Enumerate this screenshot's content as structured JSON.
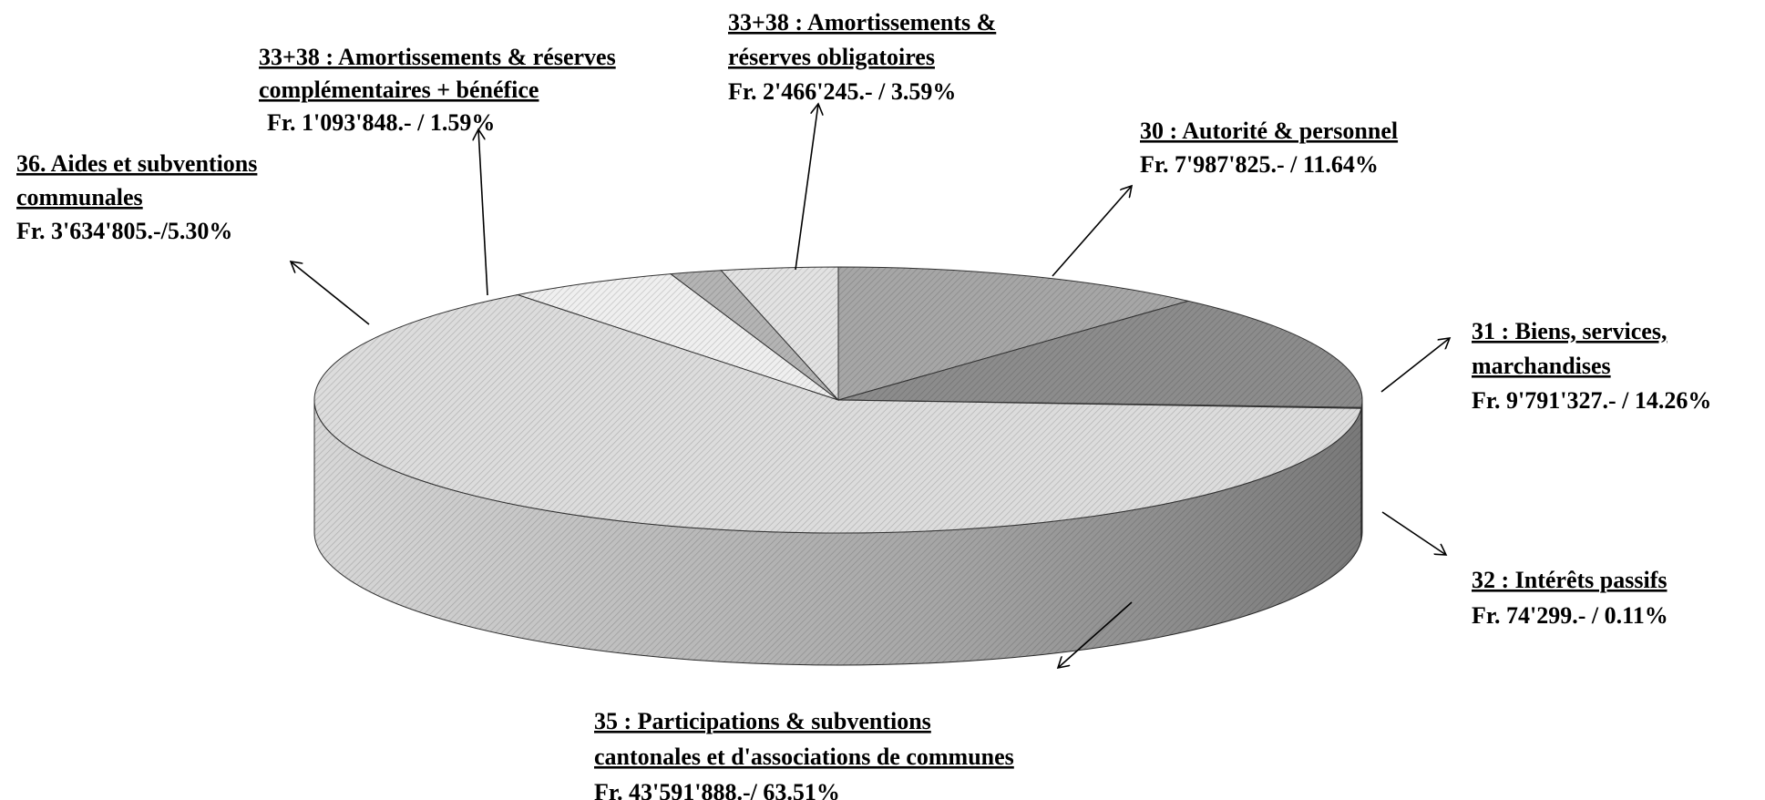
{
  "chart_data": {
    "type": "pie3d",
    "categories": [
      [
        "30 : Autorité & personnel"
      ],
      [
        "31 : Biens, services,",
        " marchandises"
      ],
      [
        "32 : Intérêts passifs "
      ],
      [
        "35 : Participations & subventions",
        "cantonales et d'associations de communes"
      ],
      [
        "36. Aides et subventions",
        "communales"
      ],
      [
        "33+38 : Amortissements & réserves",
        "complémentaires + bénéfice"
      ],
      [
        "33+38 : Amortissements &",
        "réserves obligatoires"
      ]
    ],
    "values": [
      11.64,
      14.26,
      0.11,
      63.51,
      5.3,
      1.59,
      3.59
    ],
    "value_labels": [
      "Fr. 7'987'825.- / 11.64%",
      "Fr. 9'791'327.- / 14.26%",
      "Fr. 74'299.- / 0.11%",
      "Fr. 43'591'888.-/ 63.51%",
      "Fr. 3'634'805.-/5.30%",
      "Fr. 1'093'848.- / 1.59%",
      "Fr. 2'466'245.- / 3.59%"
    ],
    "colors": [
      "#a6a6a6",
      "#8c8c8c",
      "#6e6e6e",
      "#dcdcdc",
      "#efefef",
      "#b4b4b4",
      "#e2e2e2"
    ]
  }
}
